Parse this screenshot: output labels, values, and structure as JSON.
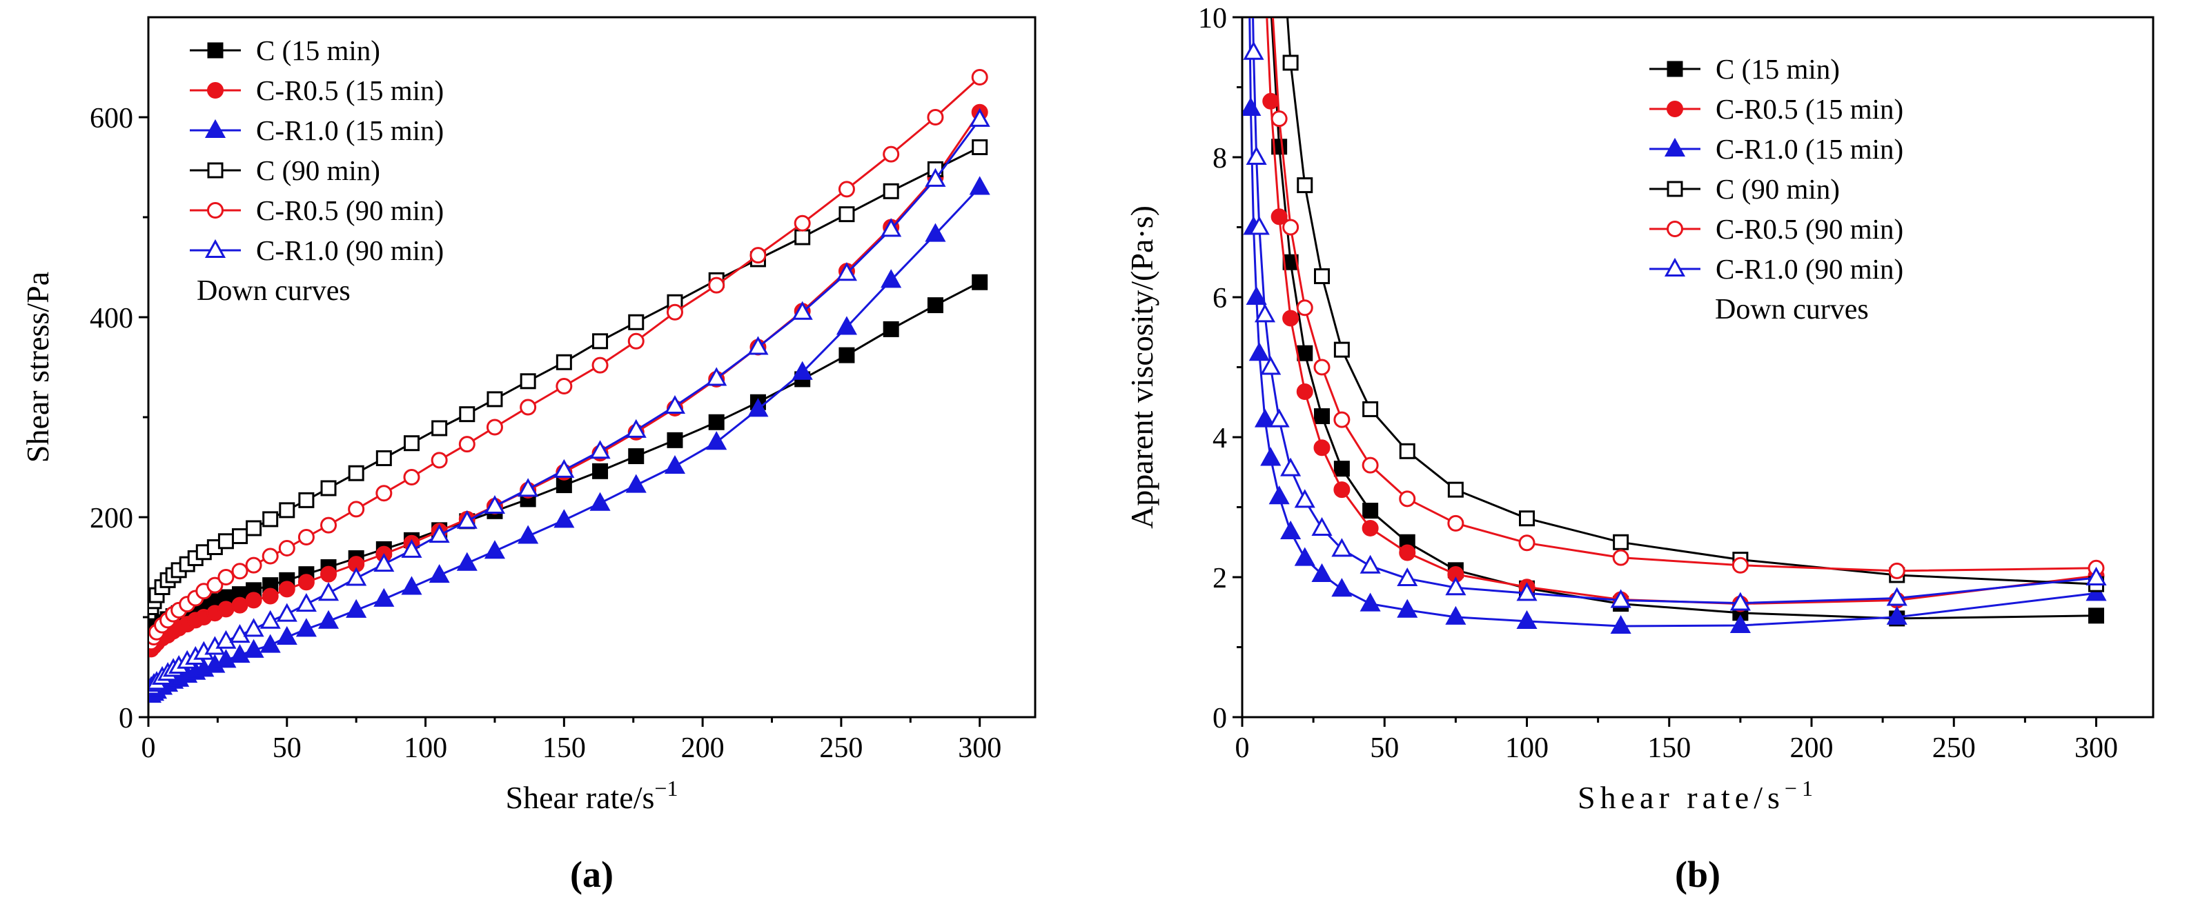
{
  "figure": {
    "panel_a_label": "(a)",
    "panel_b_label": "(b)"
  },
  "colors": {
    "black": "#000000",
    "red": "#e8131b",
    "blue": "#1717dc",
    "white": "#ffffff"
  },
  "chart_data": [
    {
      "id": "a",
      "type": "line",
      "title": "",
      "xlabel": "Shear rate/s",
      "xlabel_sup": "−1",
      "ylabel": "Shear stress/Pa",
      "legend_note": "Down curves",
      "legend_position": "top-left",
      "grid": false,
      "xlim": [
        0,
        320
      ],
      "ylim": [
        0,
        700
      ],
      "xticks": [
        0,
        50,
        100,
        150,
        200,
        250,
        300
      ],
      "yticks": [
        0,
        200,
        400,
        600
      ],
      "x_minor_step": 25,
      "y_minor_step": 100,
      "x_shared": [
        1,
        2,
        3,
        5,
        7,
        9,
        11,
        14,
        17,
        20,
        24,
        28,
        33,
        38,
        44,
        50,
        57,
        65,
        75,
        85,
        95,
        105,
        115,
        125,
        137,
        150,
        163,
        176,
        190,
        205,
        220,
        236,
        252,
        268,
        284,
        300
      ],
      "series": [
        {
          "key": "c-15",
          "label": "C (15 min)",
          "color": "black",
          "marker": "square",
          "open": false,
          "y": [
            85,
            88,
            91,
            95,
            98,
            101,
            104,
            107,
            110,
            113,
            116,
            120,
            123,
            127,
            132,
            137,
            143,
            150,
            159,
            168,
            177,
            187,
            196,
            206,
            218,
            232,
            246,
            261,
            277,
            295,
            315,
            338,
            362,
            388,
            412,
            435
          ]
        },
        {
          "key": "cr05-15",
          "label": "C-R0.5 (15 min)",
          "color": "red",
          "marker": "circle",
          "open": false,
          "y": [
            68,
            71,
            74,
            79,
            82,
            86,
            89,
            93,
            97,
            100,
            104,
            108,
            112,
            117,
            121,
            128,
            135,
            143,
            153,
            163,
            174,
            186,
            198,
            211,
            227,
            245,
            264,
            285,
            309,
            338,
            370,
            406,
            446,
            490,
            540,
            605
          ]
        },
        {
          "key": "cr10-15",
          "label": "C-R1.0 (15 min)",
          "color": "blue",
          "marker": "triangle",
          "open": false,
          "y": [
            22,
            24,
            26,
            30,
            33,
            36,
            38,
            42,
            45,
            48,
            52,
            57,
            62,
            67,
            72,
            80,
            88,
            96,
            107,
            118,
            130,
            142,
            154,
            166,
            181,
            197,
            214,
            232,
            251,
            275,
            308,
            345,
            390,
            437,
            483,
            530
          ]
        },
        {
          "key": "c-90",
          "label": "C (90 min)",
          "color": "black",
          "marker": "square",
          "open": true,
          "y": [
            110,
            116,
            122,
            130,
            137,
            142,
            147,
            153,
            159,
            165,
            170,
            176,
            181,
            189,
            198,
            207,
            217,
            229,
            244,
            259,
            274,
            289,
            303,
            318,
            336,
            355,
            376,
            395,
            415,
            437,
            458,
            480,
            503,
            526,
            548,
            570
          ]
        },
        {
          "key": "cr05-90",
          "label": "C-R0.5 (90 min)",
          "color": "red",
          "marker": "circle",
          "open": true,
          "y": [
            75,
            80,
            85,
            92,
            97,
            103,
            107,
            113,
            119,
            126,
            132,
            140,
            146,
            152,
            161,
            169,
            180,
            192,
            208,
            224,
            240,
            257,
            273,
            290,
            310,
            331,
            352,
            376,
            405,
            432,
            462,
            494,
            528,
            563,
            600,
            640
          ]
        },
        {
          "key": "cr10-90",
          "label": "C-R1.0 (90 min)",
          "color": "blue",
          "marker": "triangle",
          "open": true,
          "y": [
            30,
            33,
            35,
            40,
            44,
            48,
            51,
            56,
            60,
            65,
            70,
            76,
            82,
            88,
            96,
            103,
            113,
            124,
            139,
            153,
            167,
            182,
            196,
            211,
            228,
            247,
            266,
            287,
            311,
            339,
            370,
            405,
            444,
            488,
            538,
            598
          ]
        }
      ]
    },
    {
      "id": "b",
      "type": "line",
      "title": "",
      "xlabel": "Shear rate/s",
      "xlabel_sup": "−1",
      "ylabel": "Apparent viscosity/(Pa·s)",
      "legend_note": "Down curves",
      "legend_position": "top-right",
      "grid": false,
      "xlim": [
        0,
        320
      ],
      "ylim": [
        0,
        10
      ],
      "xticks": [
        0,
        50,
        100,
        150,
        200,
        250,
        300
      ],
      "yticks": [
        0,
        2,
        4,
        6,
        8,
        10
      ],
      "x_minor_step": 25,
      "y_minor_step": 1,
      "series": [
        {
          "key": "c-15",
          "label": "C (15 min)",
          "color": "black",
          "marker": "square",
          "open": false,
          "x": [
            8,
            10,
            13,
            17,
            22,
            28,
            35,
            45,
            58,
            75,
            100,
            133,
            175,
            230,
            300
          ],
          "y": [
            12.5,
            10.2,
            8.15,
            6.5,
            5.2,
            4.3,
            3.55,
            2.95,
            2.5,
            2.1,
            1.84,
            1.62,
            1.49,
            1.41,
            1.45
          ]
        },
        {
          "key": "cr05-15",
          "label": "C-R0.5 (15 min)",
          "color": "red",
          "marker": "circle",
          "open": false,
          "x": [
            8,
            10,
            13,
            17,
            22,
            28,
            35,
            45,
            58,
            75,
            100,
            133,
            175,
            230,
            300
          ],
          "y": [
            10.6,
            8.8,
            7.15,
            5.7,
            4.65,
            3.85,
            3.25,
            2.7,
            2.35,
            2.04,
            1.86,
            1.68,
            1.62,
            1.67,
            2.02
          ]
        },
        {
          "key": "cr10-15",
          "label": "C-R1.0 (15 min)",
          "color": "blue",
          "marker": "triangle",
          "open": false,
          "x": [
            2,
            3,
            4,
            5,
            6,
            8,
            10,
            13,
            17,
            22,
            28,
            35,
            45,
            58,
            75,
            100,
            133,
            175,
            230,
            300
          ],
          "y": [
            12,
            8.7,
            7.0,
            6.0,
            5.2,
            4.25,
            3.7,
            3.15,
            2.65,
            2.27,
            2.04,
            1.83,
            1.62,
            1.53,
            1.43,
            1.37,
            1.3,
            1.31,
            1.43,
            1.77
          ]
        },
        {
          "key": "c-90",
          "label": "C (90 min)",
          "color": "black",
          "marker": "square",
          "open": true,
          "x": [
            13,
            17,
            22,
            28,
            35,
            45,
            58,
            75,
            100,
            133,
            175,
            230,
            300
          ],
          "y": [
            11.7,
            9.35,
            7.6,
            6.3,
            5.25,
            4.4,
            3.8,
            3.25,
            2.84,
            2.5,
            2.25,
            2.03,
            1.9
          ]
        },
        {
          "key": "cr05-90",
          "label": "C-R0.5 (90 min)",
          "color": "red",
          "marker": "circle",
          "open": true,
          "x": [
            10,
            13,
            17,
            22,
            28,
            35,
            45,
            58,
            75,
            100,
            133,
            175,
            230,
            300
          ],
          "y": [
            10.5,
            8.55,
            7.0,
            5.85,
            5.0,
            4.25,
            3.6,
            3.12,
            2.77,
            2.49,
            2.28,
            2.17,
            2.09,
            2.13
          ]
        },
        {
          "key": "cr10-90",
          "label": "C-R1.0 (90 min)",
          "color": "blue",
          "marker": "triangle",
          "open": true,
          "x": [
            3,
            4,
            5,
            6,
            8,
            10,
            13,
            17,
            22,
            28,
            35,
            45,
            58,
            75,
            100,
            133,
            175,
            230,
            300
          ],
          "y": [
            11.7,
            9.5,
            8.0,
            7.0,
            5.75,
            5.0,
            4.25,
            3.55,
            3.1,
            2.7,
            2.4,
            2.16,
            1.98,
            1.85,
            1.77,
            1.67,
            1.63,
            1.7,
            1.99
          ]
        }
      ]
    }
  ]
}
